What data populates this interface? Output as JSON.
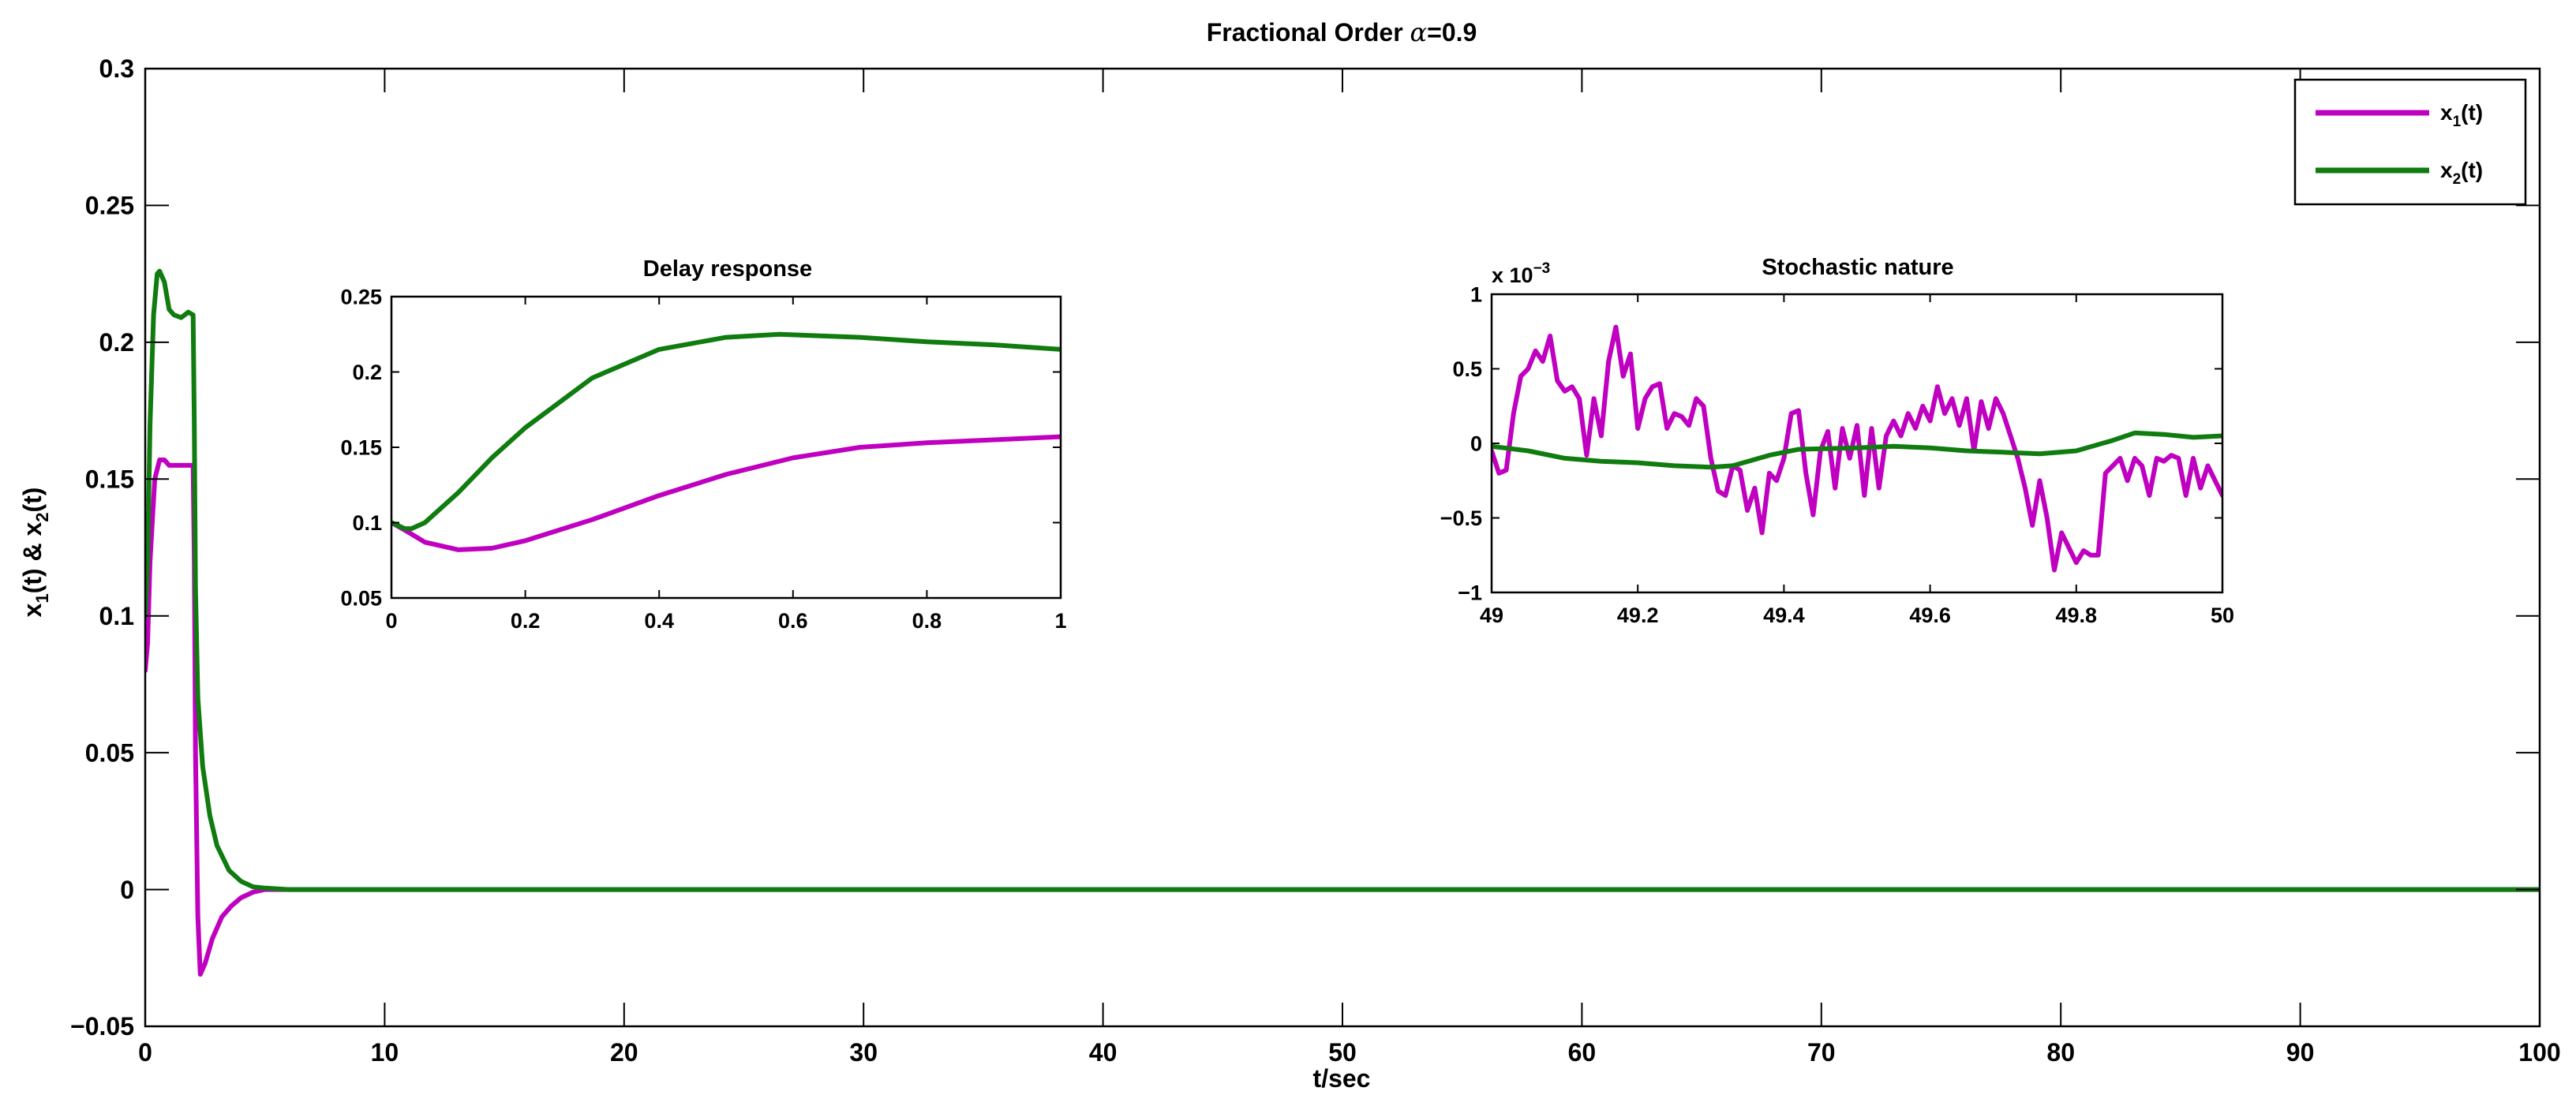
{
  "figure": {
    "title_prefix": "Fractional Order ",
    "title_symbol": "α",
    "title_suffix": "=0.9"
  },
  "colors": {
    "x1": "#c000c0",
    "x2": "#107c10"
  },
  "chart_data": [
    {
      "id": "main",
      "type": "line",
      "title": "Fractional Order α=0.9",
      "xlabel": "t/sec",
      "ylabel_parts": {
        "a": "x",
        "a_sub": "1",
        "b": "(t) & x",
        "b_sub": "2",
        "c": "(t)"
      },
      "xlim": [
        0,
        100
      ],
      "ylim": [
        -0.05,
        0.3
      ],
      "xticks": [
        0,
        10,
        20,
        30,
        40,
        50,
        60,
        70,
        80,
        90,
        100
      ],
      "xtick_labels": [
        "0",
        "10",
        "20",
        "30",
        "40",
        "50",
        "60",
        "70",
        "80",
        "90",
        "100"
      ],
      "yticks": [
        -0.05,
        0,
        0.05,
        0.1,
        0.15,
        0.2,
        0.25,
        0.3
      ],
      "ytick_labels": [
        "−0.05",
        "0",
        "0.05",
        "0.1",
        "0.15",
        "0.2",
        "0.25",
        "0.3"
      ],
      "legend": {
        "placement": "top-right",
        "entries": [
          {
            "base": "x",
            "sub": "1",
            "suffix": "(t)",
            "series": "x1"
          },
          {
            "base": "x",
            "sub": "2",
            "suffix": "(t)",
            "series": "x2"
          }
        ]
      },
      "series": [
        {
          "key": "x1",
          "name": "x1(t)",
          "x": [
            0,
            0.1,
            0.2,
            0.4,
            0.6,
            0.8,
            1.0,
            1.2,
            1.5,
            1.8,
            2.0,
            2.05,
            2.1,
            2.2,
            2.3,
            2.5,
            2.8,
            3.2,
            3.6,
            4.0,
            4.5,
            5.0,
            6.0,
            100
          ],
          "y": [
            0.08,
            0.09,
            0.12,
            0.15,
            0.157,
            0.157,
            0.155,
            0.155,
            0.155,
            0.155,
            0.155,
            0.12,
            0.05,
            -0.01,
            -0.031,
            -0.027,
            -0.018,
            -0.01,
            -0.006,
            -0.003,
            -0.001,
            0,
            0,
            0
          ]
        },
        {
          "key": "x2",
          "name": "x2(t)",
          "x": [
            0,
            0.1,
            0.2,
            0.35,
            0.5,
            0.6,
            0.8,
            1.0,
            1.2,
            1.5,
            1.8,
            2.0,
            2.05,
            2.1,
            2.2,
            2.4,
            2.7,
            3.0,
            3.5,
            4.0,
            4.5,
            5.0,
            6.0,
            100
          ],
          "y": [
            0.1,
            0.12,
            0.17,
            0.21,
            0.225,
            0.226,
            0.222,
            0.212,
            0.21,
            0.209,
            0.211,
            0.21,
            0.17,
            0.11,
            0.07,
            0.045,
            0.027,
            0.016,
            0.007,
            0.003,
            0.001,
            0.0005,
            0,
            0
          ]
        }
      ]
    },
    {
      "id": "delay",
      "type": "line",
      "title": "Delay response",
      "xlim": [
        0,
        1
      ],
      "ylim": [
        0.05,
        0.25
      ],
      "xticks": [
        0,
        0.2,
        0.4,
        0.6,
        0.8,
        1
      ],
      "xtick_labels": [
        "0",
        "0.2",
        "0.4",
        "0.6",
        "0.8",
        "1"
      ],
      "yticks": [
        0.05,
        0.1,
        0.15,
        0.2,
        0.25
      ],
      "ytick_labels": [
        "0.05",
        "0.1",
        "0.15",
        "0.2",
        "0.25"
      ],
      "series": [
        {
          "key": "x1",
          "name": "x1(t)",
          "x": [
            0,
            0.02,
            0.05,
            0.1,
            0.15,
            0.2,
            0.3,
            0.4,
            0.5,
            0.6,
            0.7,
            0.8,
            0.9,
            1.0
          ],
          "y": [
            0.1,
            0.095,
            0.087,
            0.082,
            0.083,
            0.088,
            0.102,
            0.118,
            0.132,
            0.143,
            0.15,
            0.153,
            0.155,
            0.157
          ]
        },
        {
          "key": "x2",
          "name": "x2(t)",
          "x": [
            0,
            0.02,
            0.03,
            0.05,
            0.1,
            0.15,
            0.2,
            0.3,
            0.4,
            0.5,
            0.58,
            0.7,
            0.8,
            0.9,
            1.0
          ],
          "y": [
            0.1,
            0.096,
            0.096,
            0.1,
            0.12,
            0.143,
            0.163,
            0.196,
            0.215,
            0.223,
            0.225,
            0.223,
            0.22,
            0.218,
            0.215
          ]
        }
      ]
    },
    {
      "id": "stochastic",
      "type": "line",
      "title": "Stochastic nature",
      "scale_label": "x 10",
      "scale_exponent": "−3",
      "xlim": [
        49,
        50
      ],
      "ylim": [
        -1,
        1
      ],
      "xticks": [
        49,
        49.2,
        49.4,
        49.6,
        49.8,
        50
      ],
      "xtick_labels": [
        "49",
        "49.2",
        "49.4",
        "49.6",
        "49.8",
        "50"
      ],
      "yticks": [
        -1,
        -0.5,
        0,
        0.5,
        1
      ],
      "ytick_labels": [
        "−1",
        "−0.5",
        "0",
        "0.5",
        "1"
      ],
      "series": [
        {
          "key": "x1",
          "name": "x1(t)",
          "x": [
            49.0,
            49.01,
            49.02,
            49.03,
            49.04,
            49.05,
            49.06,
            49.07,
            49.08,
            49.09,
            49.1,
            49.11,
            49.12,
            49.13,
            49.14,
            49.15,
            49.16,
            49.17,
            49.18,
            49.19,
            49.2,
            49.21,
            49.22,
            49.23,
            49.24,
            49.25,
            49.26,
            49.27,
            49.28,
            49.29,
            49.3,
            49.31,
            49.32,
            49.33,
            49.34,
            49.35,
            49.36,
            49.37,
            49.38,
            49.39,
            49.4,
            49.41,
            49.42,
            49.43,
            49.44,
            49.45,
            49.46,
            49.47,
            49.48,
            49.49,
            49.5,
            49.51,
            49.52,
            49.53,
            49.54,
            49.55,
            49.56,
            49.57,
            49.58,
            49.59,
            49.6,
            49.61,
            49.62,
            49.63,
            49.64,
            49.65,
            49.66,
            49.67,
            49.68,
            49.69,
            49.7,
            49.71,
            49.72,
            49.73,
            49.74,
            49.75,
            49.76,
            49.77,
            49.78,
            49.79,
            49.8,
            49.81,
            49.82,
            49.83,
            49.84,
            49.85,
            49.86,
            49.87,
            49.88,
            49.89,
            49.9,
            49.91,
            49.92,
            49.93,
            49.94,
            49.95,
            49.96,
            49.97,
            49.98,
            49.99,
            50.0
          ],
          "y": [
            -0.05,
            -0.2,
            -0.18,
            0.2,
            0.45,
            0.5,
            0.62,
            0.55,
            0.72,
            0.42,
            0.35,
            0.38,
            0.3,
            -0.08,
            0.3,
            0.05,
            0.55,
            0.78,
            0.45,
            0.6,
            0.1,
            0.3,
            0.38,
            0.4,
            0.1,
            0.2,
            0.18,
            0.12,
            0.3,
            0.25,
            -0.1,
            -0.32,
            -0.35,
            -0.15,
            -0.18,
            -0.45,
            -0.3,
            -0.6,
            -0.2,
            -0.25,
            -0.1,
            0.2,
            0.22,
            -0.2,
            -0.48,
            -0.05,
            0.08,
            -0.3,
            0.1,
            -0.1,
            0.12,
            -0.35,
            0.1,
            -0.3,
            0.05,
            0.15,
            0.05,
            0.2,
            0.1,
            0.25,
            0.15,
            0.38,
            0.2,
            0.3,
            0.12,
            0.3,
            -0.05,
            0.28,
            0.1,
            0.3,
            0.2,
            0.05,
            -0.1,
            -0.3,
            -0.55,
            -0.25,
            -0.5,
            -0.85,
            -0.6,
            -0.7,
            -0.8,
            -0.72,
            -0.75,
            -0.75,
            -0.2,
            -0.15,
            -0.1,
            -0.25,
            -0.1,
            -0.15,
            -0.35,
            -0.1,
            -0.12,
            -0.08,
            -0.1,
            -0.35,
            -0.1,
            -0.3,
            -0.15,
            -0.25,
            -0.35
          ]
        },
        {
          "key": "x2",
          "name": "x2(t)",
          "x": [
            49.0,
            49.05,
            49.1,
            49.15,
            49.2,
            49.25,
            49.3,
            49.33,
            49.38,
            49.42,
            49.5,
            49.55,
            49.6,
            49.65,
            49.7,
            49.75,
            49.8,
            49.85,
            49.88,
            49.92,
            49.96,
            50.0
          ],
          "y": [
            -0.02,
            -0.05,
            -0.1,
            -0.12,
            -0.13,
            -0.15,
            -0.16,
            -0.15,
            -0.08,
            -0.04,
            -0.03,
            -0.02,
            -0.03,
            -0.05,
            -0.06,
            -0.07,
            -0.05,
            0.02,
            0.07,
            0.06,
            0.04,
            0.05
          ]
        }
      ]
    }
  ]
}
